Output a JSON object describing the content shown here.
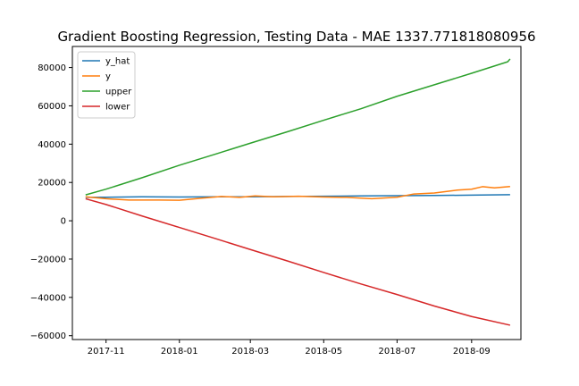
{
  "chart_data": {
    "type": "line",
    "title": "Gradient Boosting Regression, Testing Data - MAE 1337.771818080956",
    "xlabel": "",
    "ylabel": "",
    "x_axis_type": "date",
    "xlim": [
      "2017-10-04",
      "2018-10-12"
    ],
    "ylim": [
      -62000,
      91000
    ],
    "grid": false,
    "legend_position": "upper-left",
    "x_ticks": [
      {
        "value": "2017-11-01",
        "label": "2017-11"
      },
      {
        "value": "2018-01-01",
        "label": "2018-01"
      },
      {
        "value": "2018-03-01",
        "label": "2018-03"
      },
      {
        "value": "2018-05-01",
        "label": "2018-05"
      },
      {
        "value": "2018-07-01",
        "label": "2018-07"
      },
      {
        "value": "2018-09-01",
        "label": "2018-09"
      }
    ],
    "y_ticks": [
      {
        "value": -60000,
        "label": "−60000"
      },
      {
        "value": -40000,
        "label": "−40000"
      },
      {
        "value": -20000,
        "label": "−20000"
      },
      {
        "value": 0,
        "label": "0"
      },
      {
        "value": 20000,
        "label": "20000"
      },
      {
        "value": 40000,
        "label": "40000"
      },
      {
        "value": 60000,
        "label": "60000"
      },
      {
        "value": 80000,
        "label": "80000"
      }
    ],
    "series": [
      {
        "name": "y_hat",
        "color": "#1f77b4",
        "points": [
          [
            "2017-10-15",
            12200
          ],
          [
            "2017-11-01",
            12300
          ],
          [
            "2017-12-01",
            12500
          ],
          [
            "2018-01-01",
            12400
          ],
          [
            "2018-02-01",
            12500
          ],
          [
            "2018-03-01",
            12500
          ],
          [
            "2018-04-01",
            12700
          ],
          [
            "2018-05-01",
            12800
          ],
          [
            "2018-06-01",
            13000
          ],
          [
            "2018-07-01",
            13100
          ],
          [
            "2018-08-01",
            13200
          ],
          [
            "2018-09-01",
            13400
          ],
          [
            "2018-10-03",
            13600
          ]
        ]
      },
      {
        "name": "y",
        "color": "#ff7f0e",
        "points": [
          [
            "2017-10-15",
            12500
          ],
          [
            "2017-11-01",
            11500
          ],
          [
            "2017-11-20",
            10800
          ],
          [
            "2017-12-15",
            10800
          ],
          [
            "2018-01-01",
            10700
          ],
          [
            "2018-01-20",
            11800
          ],
          [
            "2018-02-05",
            12700
          ],
          [
            "2018-02-20",
            12200
          ],
          [
            "2018-03-05",
            13000
          ],
          [
            "2018-03-20",
            12500
          ],
          [
            "2018-04-10",
            12800
          ],
          [
            "2018-05-01",
            12400
          ],
          [
            "2018-05-20",
            12200
          ],
          [
            "2018-06-10",
            11500
          ],
          [
            "2018-07-01",
            12300
          ],
          [
            "2018-07-15",
            14000
          ],
          [
            "2018-08-01",
            14500
          ],
          [
            "2018-08-20",
            16000
          ],
          [
            "2018-09-01",
            16500
          ],
          [
            "2018-09-10",
            17800
          ],
          [
            "2018-09-20",
            17200
          ],
          [
            "2018-10-03",
            17900
          ]
        ]
      },
      {
        "name": "upper",
        "color": "#2ca02c",
        "points": [
          [
            "2017-10-15",
            13500
          ],
          [
            "2017-11-01",
            16500
          ],
          [
            "2017-12-01",
            22500
          ],
          [
            "2018-01-01",
            29000
          ],
          [
            "2018-02-01",
            35000
          ],
          [
            "2018-03-01",
            40500
          ],
          [
            "2018-04-01",
            46500
          ],
          [
            "2018-05-01",
            52500
          ],
          [
            "2018-06-01",
            58500
          ],
          [
            "2018-07-01",
            65000
          ],
          [
            "2018-08-01",
            71000
          ],
          [
            "2018-09-01",
            77000
          ],
          [
            "2018-10-01",
            83000
          ],
          [
            "2018-10-03",
            84500
          ]
        ]
      },
      {
        "name": "lower",
        "color": "#d62728",
        "points": [
          [
            "2017-10-15",
            11500
          ],
          [
            "2017-11-01",
            8500
          ],
          [
            "2017-12-01",
            2500
          ],
          [
            "2018-01-01",
            -3500
          ],
          [
            "2018-02-01",
            -9500
          ],
          [
            "2018-03-01",
            -15000
          ],
          [
            "2018-04-01",
            -21000
          ],
          [
            "2018-05-01",
            -27000
          ],
          [
            "2018-06-01",
            -33000
          ],
          [
            "2018-07-01",
            -38500
          ],
          [
            "2018-08-01",
            -44500
          ],
          [
            "2018-09-01",
            -50000
          ],
          [
            "2018-10-03",
            -54500
          ]
        ]
      }
    ]
  }
}
